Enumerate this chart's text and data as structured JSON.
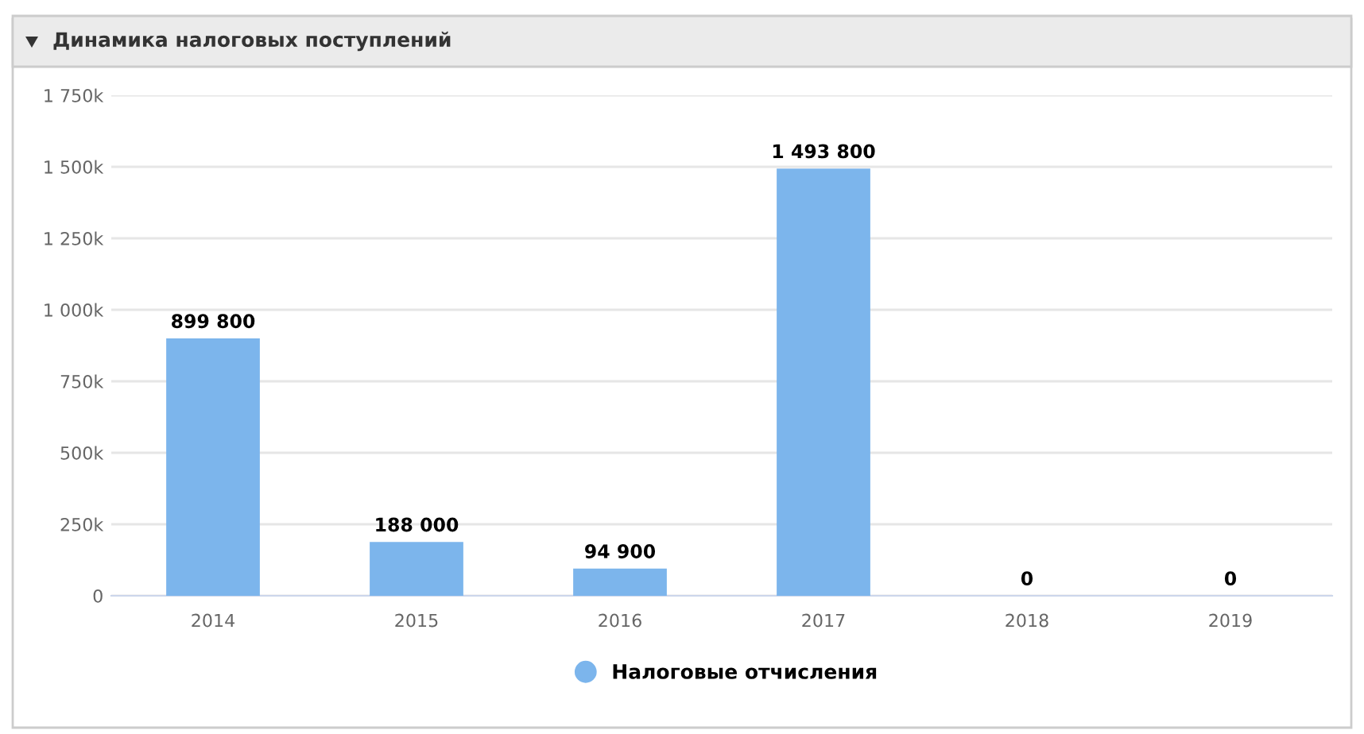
{
  "chart_data": {
    "type": "bar",
    "title": "Динамика налоговых поступлений",
    "categories": [
      "2014",
      "2015",
      "2016",
      "2017",
      "2018",
      "2019"
    ],
    "series": [
      {
        "name": "Налоговые отчисления",
        "color": "#7cb5ec",
        "values": [
          899800,
          188000,
          94900,
          1493800,
          0,
          0
        ],
        "value_labels": [
          "899 800",
          "188 000",
          "94 900",
          "1 493 800",
          "0",
          "0"
        ]
      }
    ],
    "ylim": [
      0,
      1750000
    ],
    "yticks": [
      {
        "value": 0,
        "label": "0"
      },
      {
        "value": 250000,
        "label": "250k"
      },
      {
        "value": 500000,
        "label": "500k"
      },
      {
        "value": 750000,
        "label": "750k"
      },
      {
        "value": 1000000,
        "label": "1 000k"
      },
      {
        "value": 1250000,
        "label": "1 250k"
      },
      {
        "value": 1500000,
        "label": "1 500k"
      },
      {
        "value": 1750000,
        "label": "1 750k"
      }
    ],
    "grid": "y",
    "legend": "bottom"
  }
}
